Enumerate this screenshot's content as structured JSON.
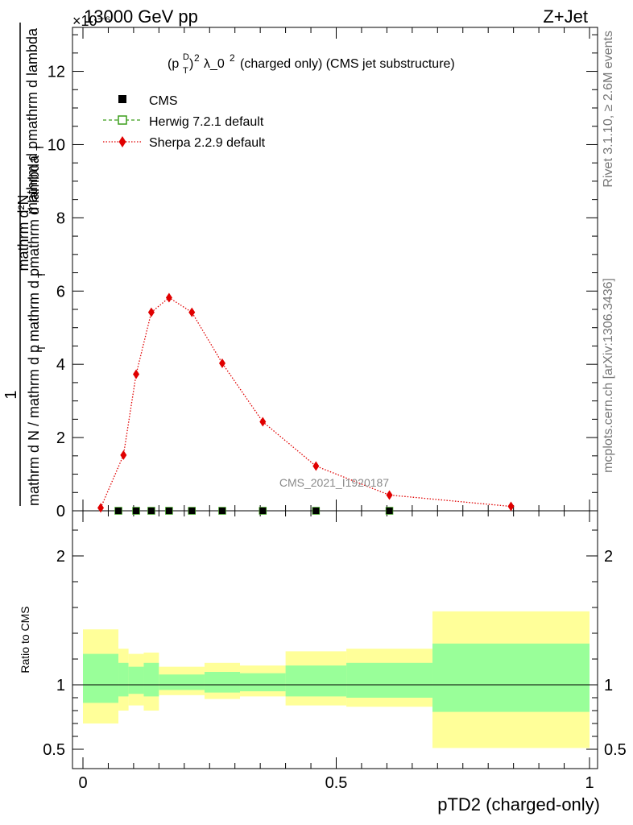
{
  "header": {
    "left": "13000 GeV pp",
    "right": "Z+Jet",
    "exponent": "×10⁻⁶"
  },
  "side_labels": {
    "rivet": "Rivet 3.1.10, ≥ 2.6M events",
    "mcplots": "mcplots.cern.ch [arXiv:1306.3436]"
  },
  "watermark": "CMS_2021_I1920187",
  "plot_title": "(p_T^D)^2 λ_0^2 (charged only) (CMS jet substructure)",
  "top_ylabel": {
    "numerator": "1",
    "denominator": "mathrm d N / mathrm d p_T mathrm d p_T mathrm d lambda",
    "top_frac": "mathrm d²N"
  },
  "ratio_ylabel": "Ratio to CMS",
  "xlabel": "pTD2 (charged-only)",
  "legend": [
    {
      "label": "CMS",
      "color": "#000000",
      "marker": "square"
    },
    {
      "label": "Herwig 7.2.1 default",
      "color": "#3a9e1a",
      "marker": "open-square"
    },
    {
      "label": "Sherpa 2.2.9 default",
      "color": "#e00000",
      "marker": "diamond"
    }
  ],
  "chart_data": [
    {
      "type": "line",
      "name": "main",
      "xlim": [
        0,
        1
      ],
      "ylim": [
        0,
        13.2
      ],
      "x_ticks": [
        "0",
        "0.5",
        "1"
      ],
      "y_ticks": [
        0,
        2,
        4,
        6,
        8,
        10,
        12
      ],
      "y_scale_label": "×10⁻⁶",
      "series": [
        {
          "name": "CMS",
          "x": [
            0.07,
            0.105,
            0.135,
            0.17,
            0.215,
            0.275,
            0.355,
            0.46,
            0.605
          ],
          "values": [
            0,
            0,
            0,
            0,
            0,
            0,
            0,
            0,
            0
          ]
        },
        {
          "name": "Herwig 7.2.1 default",
          "x": [
            0.07,
            0.105,
            0.135,
            0.17,
            0.215,
            0.275,
            0.355,
            0.46,
            0.605
          ],
          "values": [
            0,
            0,
            0,
            0,
            0,
            0,
            0,
            0,
            0
          ]
        },
        {
          "name": "Sherpa 2.2.9 default",
          "x": [
            0.035,
            0.08,
            0.105,
            0.135,
            0.17,
            0.215,
            0.275,
            0.355,
            0.46,
            0.605,
            0.845
          ],
          "values": [
            0.08,
            1.52,
            3.73,
            5.42,
            5.82,
            5.42,
            4.03,
            2.43,
            1.22,
            0.43,
            0.12
          ]
        }
      ]
    },
    {
      "type": "area",
      "name": "ratio",
      "xlim": [
        0,
        1
      ],
      "ylim": [
        0.35,
        2.35
      ],
      "y_ticks": [
        "0.5",
        "1",
        "2"
      ],
      "reference_line": 1,
      "bins": [
        {
          "lo": 0.0,
          "hi": 0.07,
          "yellow": [
            0.7,
            1.43
          ],
          "green": [
            0.86,
            1.24
          ]
        },
        {
          "lo": 0.07,
          "hi": 0.09,
          "yellow": [
            0.8,
            1.28
          ],
          "green": [
            0.91,
            1.17
          ]
        },
        {
          "lo": 0.09,
          "hi": 0.12,
          "yellow": [
            0.84,
            1.24
          ],
          "green": [
            0.93,
            1.14
          ]
        },
        {
          "lo": 0.12,
          "hi": 0.15,
          "yellow": [
            0.8,
            1.25
          ],
          "green": [
            0.91,
            1.17
          ]
        },
        {
          "lo": 0.15,
          "hi": 0.24,
          "yellow": [
            0.92,
            1.14
          ],
          "green": [
            0.96,
            1.08
          ]
        },
        {
          "lo": 0.24,
          "hi": 0.31,
          "yellow": [
            0.89,
            1.17
          ],
          "green": [
            0.94,
            1.1
          ]
        },
        {
          "lo": 0.31,
          "hi": 0.4,
          "yellow": [
            0.91,
            1.15
          ],
          "green": [
            0.95,
            1.09
          ]
        },
        {
          "lo": 0.4,
          "hi": 0.52,
          "yellow": [
            0.84,
            1.26
          ],
          "green": [
            0.91,
            1.15
          ]
        },
        {
          "lo": 0.52,
          "hi": 0.69,
          "yellow": [
            0.83,
            1.28
          ],
          "green": [
            0.9,
            1.17
          ]
        },
        {
          "lo": 0.69,
          "hi": 1.0,
          "yellow": [
            0.51,
            1.57
          ],
          "green": [
            0.79,
            1.32
          ]
        }
      ]
    }
  ],
  "colors": {
    "yellow_band": "#ffff99",
    "green_band": "#99ff99",
    "sherpa": "#e00000",
    "herwig": "#3a9e1a",
    "cms": "#000000",
    "watermark": "#8a8a8a",
    "side_text": "#777777"
  }
}
